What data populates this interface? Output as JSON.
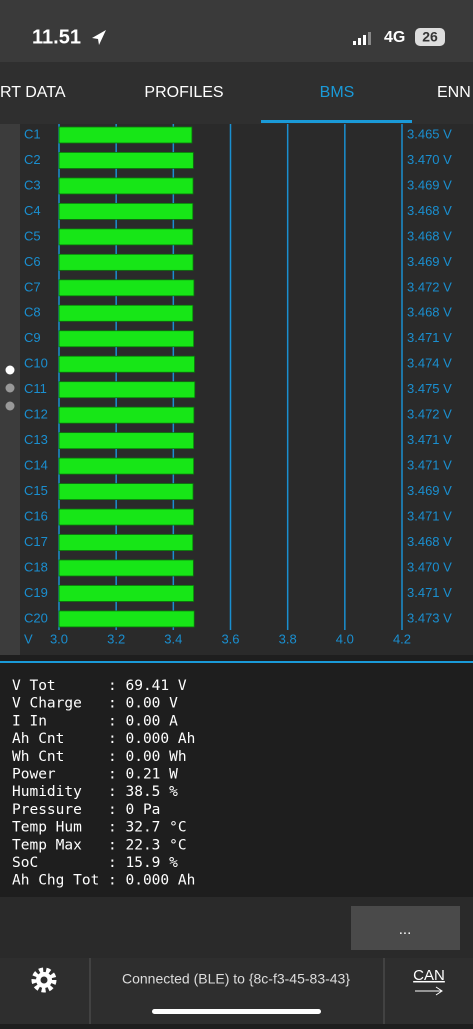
{
  "status_bar": {
    "time": "11.51",
    "network": "4G",
    "battery": "26"
  },
  "tabs": [
    "RT DATA",
    "PROFILES",
    "BMS",
    "ENN"
  ],
  "chart_data": {
    "type": "bar",
    "orientation": "horizontal",
    "x_label": "V",
    "categories": [
      "C1",
      "C2",
      "C3",
      "C4",
      "C5",
      "C6",
      "C7",
      "C8",
      "C9",
      "C10",
      "C11",
      "C12",
      "C13",
      "C14",
      "C15",
      "C16",
      "C17",
      "C18",
      "C19",
      "C20"
    ],
    "values": [
      3.465,
      3.47,
      3.469,
      3.468,
      3.468,
      3.469,
      3.472,
      3.468,
      3.471,
      3.474,
      3.475,
      3.472,
      3.471,
      3.471,
      3.469,
      3.471,
      3.468,
      3.47,
      3.471,
      3.473
    ],
    "value_labels": [
      "3.465 V",
      "3.470 V",
      "3.469 V",
      "3.468 V",
      "3.468 V",
      "3.469 V",
      "3.472 V",
      "3.468 V",
      "3.471 V",
      "3.474 V",
      "3.475 V",
      "3.472 V",
      "3.471 V",
      "3.471 V",
      "3.469 V",
      "3.471 V",
      "3.468 V",
      "3.470 V",
      "3.471 V",
      "3.473 V"
    ],
    "color": "#17e617",
    "grid_color": "#1a8fd0",
    "xlim": [
      3.0,
      4.2
    ],
    "xticks": [
      {
        "value": 3,
        "label": "3.0"
      },
      3.2,
      3.4,
      3.6,
      3.8,
      {
        "value": 4,
        "label": "4.0"
      },
      4.2
    ],
    "grid": true
  },
  "stats": [
    "V Tot      : 69.41 V",
    "V Charge   : 0.00 V",
    "I In       : 0.00 A",
    "Ah Cnt     : 0.000 Ah",
    "Wh Cnt     : 0.00 Wh",
    "Power      : 0.21 W",
    "Humidity   : 38.5 %",
    "Pressure   : 0 Pa",
    "Temp Hum   : 32.7 °C",
    "Temp Max   : 22.3 °C",
    "SoC        : 15.9 %",
    "Ah Chg Tot : 0.000 Ah"
  ],
  "button": "...",
  "footer": {
    "status": "Connected (BLE) to {8c-f3-45-83-43}",
    "can": "CAN"
  }
}
